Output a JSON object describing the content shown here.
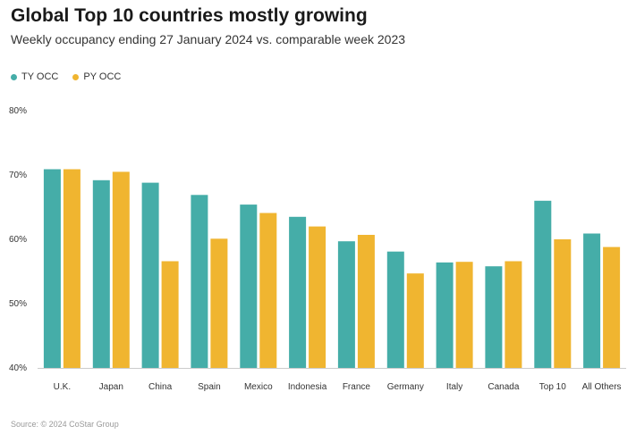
{
  "colors": {
    "ty": "#45ada8",
    "py": "#f0b530"
  },
  "chart_data": {
    "type": "bar",
    "title": "Global Top 10 countries mostly growing",
    "subtitle": "Weekly occupancy ending 27 January 2024 vs. comparable week 2023",
    "source": "Source: © 2024 CoStar Group",
    "categories": [
      "U.K.",
      "Japan",
      "China",
      "Spain",
      "Mexico",
      "Indonesia",
      "France",
      "Germany",
      "Italy",
      "Canada",
      "Top 10",
      "All Others"
    ],
    "series": [
      {
        "name": "TY OCC",
        "values": [
          70.9,
          69.2,
          68.8,
          66.9,
          65.4,
          63.5,
          59.7,
          58.1,
          56.4,
          55.8,
          66.0,
          60.9
        ]
      },
      {
        "name": "PY OCC",
        "values": [
          70.9,
          70.5,
          56.6,
          60.1,
          64.1,
          62.0,
          60.7,
          54.7,
          56.5,
          56.6,
          60.0,
          58.8
        ]
      }
    ],
    "ylim": [
      40,
      80
    ],
    "yticks": [
      40,
      50,
      60,
      70,
      80
    ],
    "ytick_labels": [
      "40%",
      "50%",
      "60%",
      "70%",
      "80%"
    ],
    "xlabel": "",
    "ylabel": "",
    "legend_position": "top-left"
  }
}
